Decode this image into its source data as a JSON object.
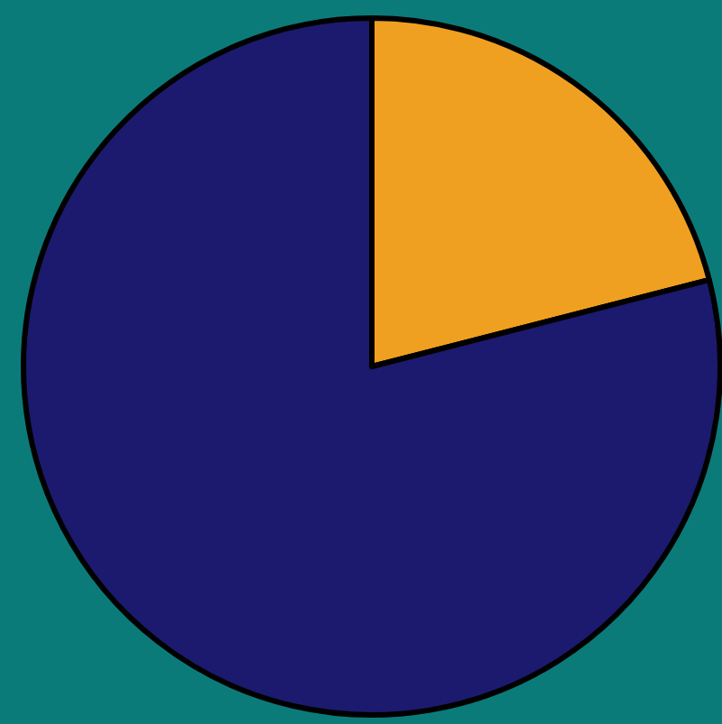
{
  "chart_data": {
    "type": "pie",
    "categories": [
      null,
      null
    ],
    "values": [
      21,
      79
    ],
    "colors": [
      "#f0a020",
      "#1c1a6e"
    ]
  }
}
